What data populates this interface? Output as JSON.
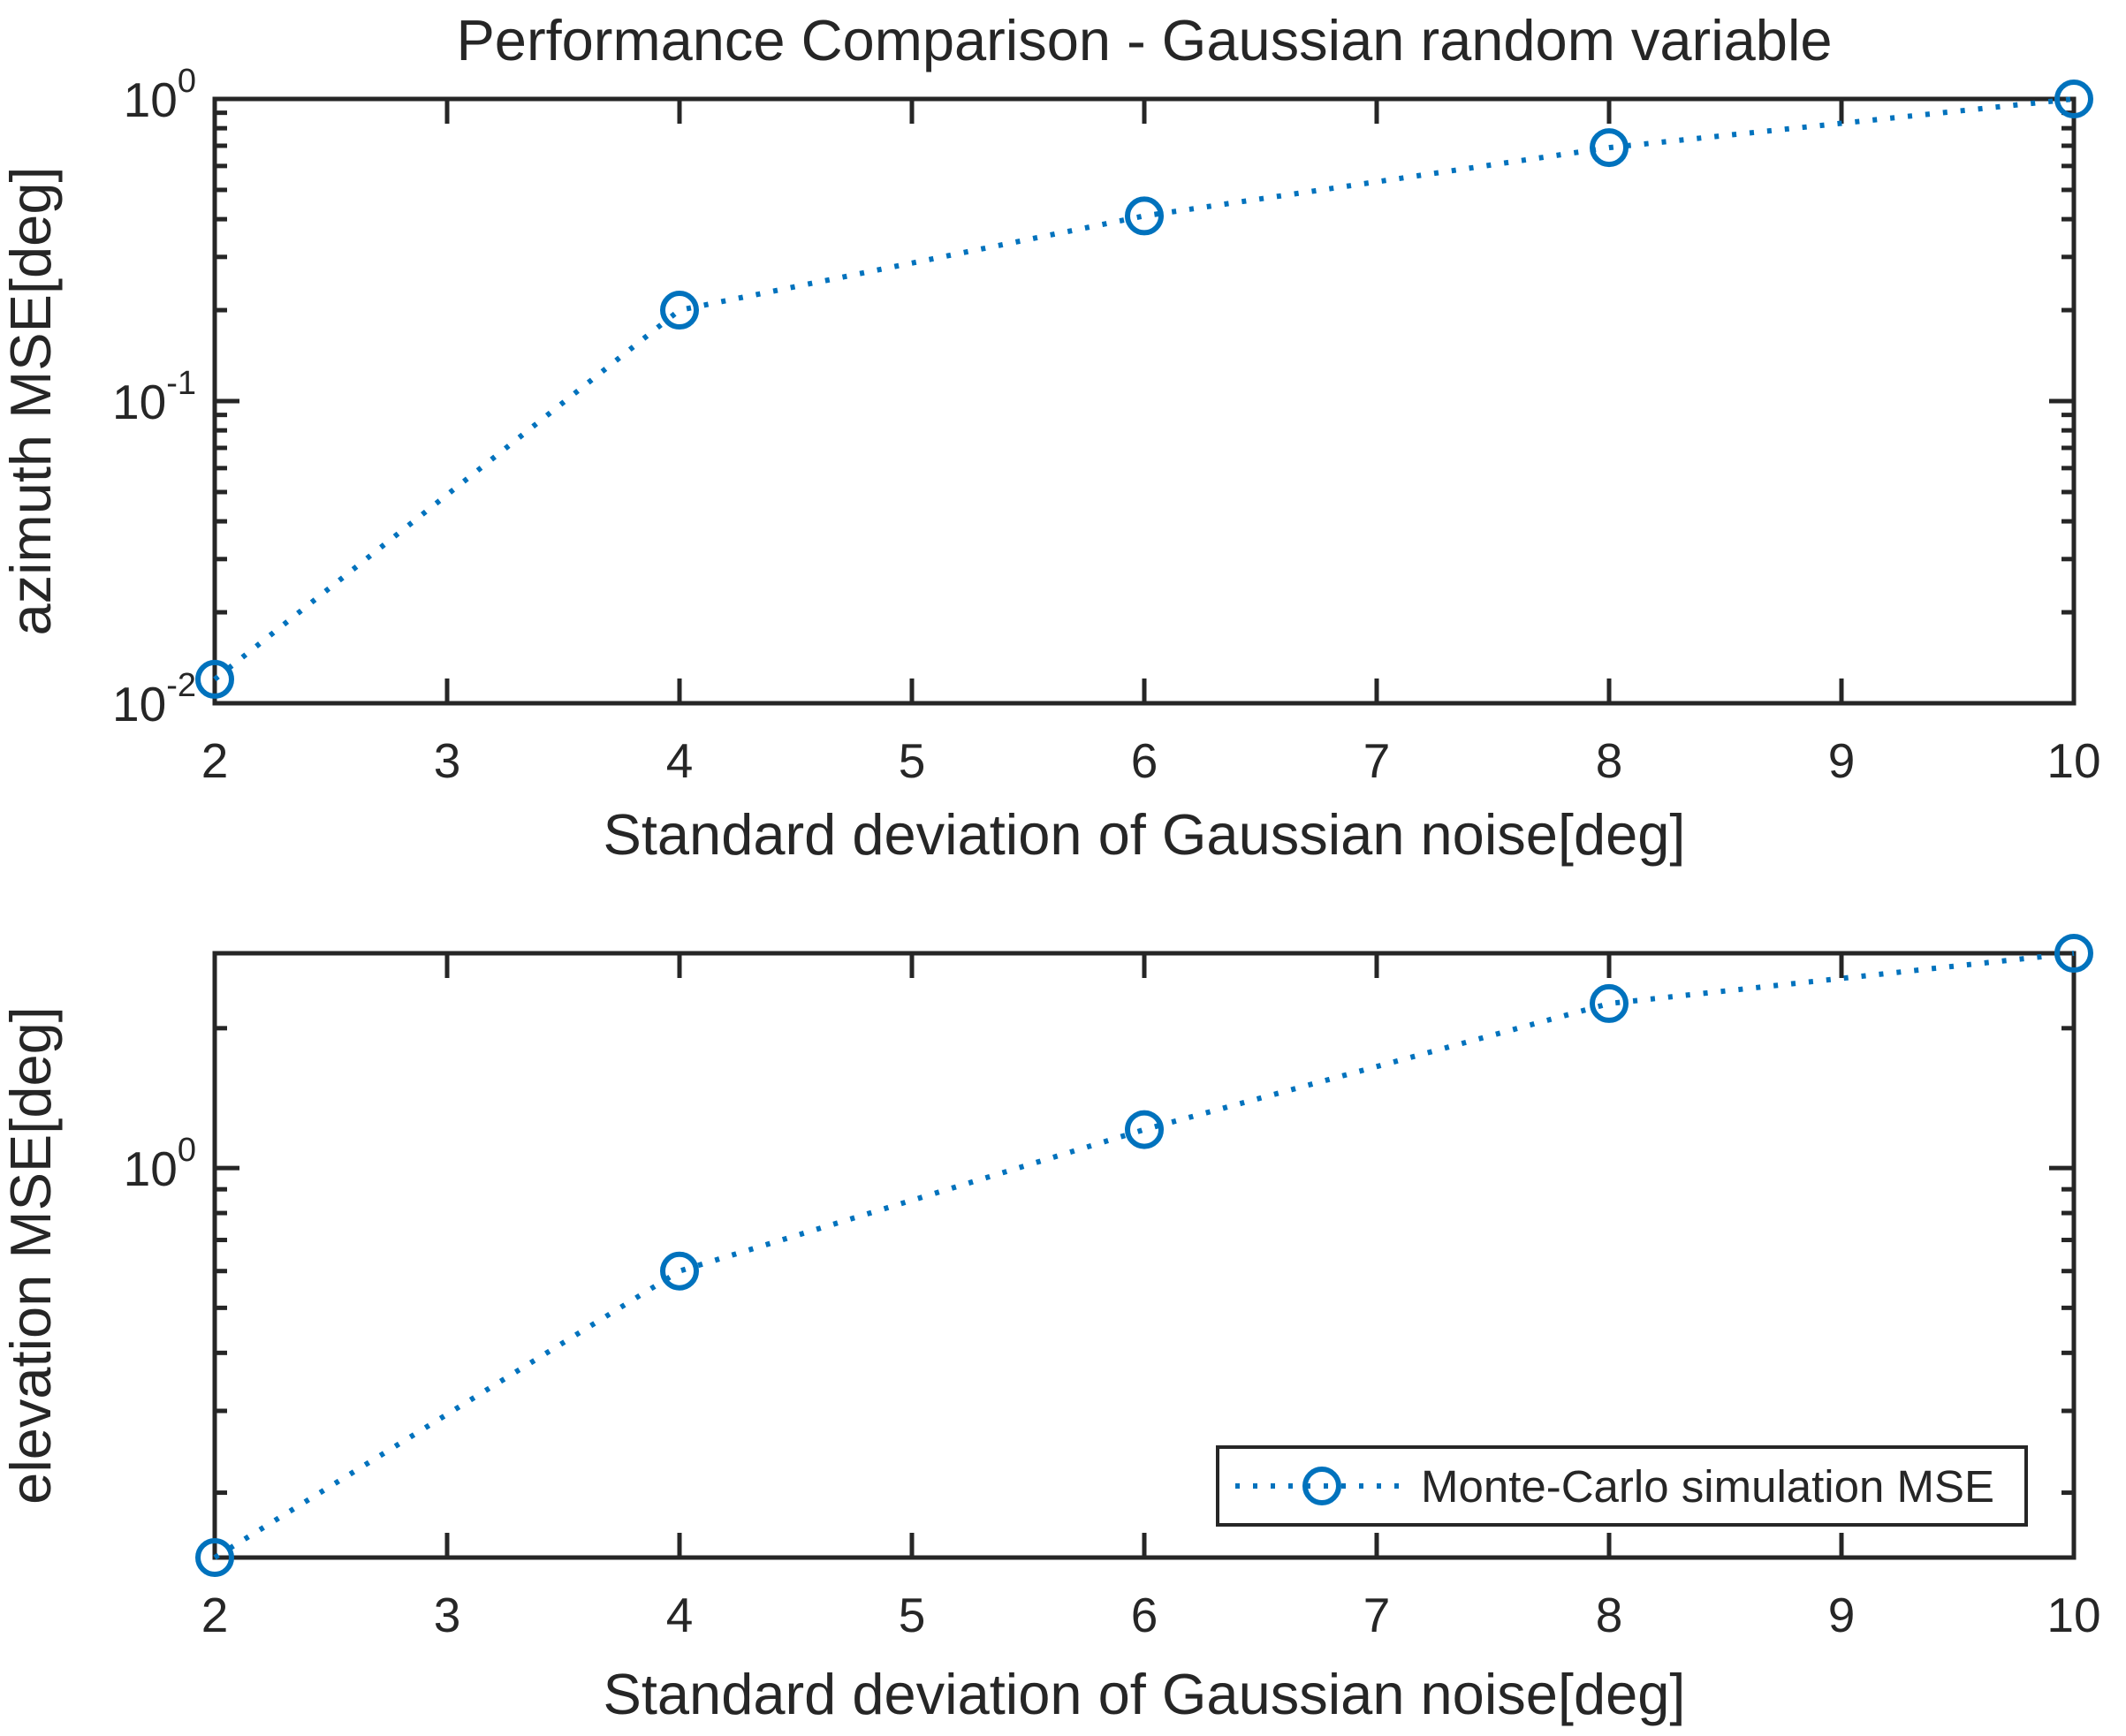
{
  "figure": {
    "background": "#ffffff",
    "series_color": "#0072BD",
    "axis_color": "#262626",
    "text_color": "#262626"
  },
  "chart_data": [
    {
      "type": "line",
      "subplot": "top",
      "title": "Performance Comparison - Gaussian random variable",
      "xlabel": "Standard deviation of Gaussian noise[deg]",
      "ylabel": "azimuth MSE[deg]",
      "series": [
        {
          "name": "Monte-Carlo simulation MSE",
          "x": [
            2,
            4,
            6,
            8,
            10
          ],
          "y": [
            0.012,
            0.2,
            0.41,
            0.69,
            1.0
          ]
        }
      ],
      "xlim": [
        2,
        10
      ],
      "ylim": [
        0.01,
        1.0
      ],
      "xscale": "linear",
      "yscale": "log",
      "xticks": [
        "2",
        "3",
        "4",
        "5",
        "6",
        "7",
        "8",
        "9",
        "10"
      ],
      "xtick_values": [
        2,
        3,
        4,
        5,
        6,
        7,
        8,
        9,
        10
      ],
      "ytick_values": [
        1,
        0.1,
        0.01
      ],
      "ytick_labels": [
        {
          "base": "10",
          "exp": "0"
        },
        {
          "base": "10",
          "exp": "-1"
        },
        {
          "base": "10",
          "exp": "-2"
        }
      ],
      "line_style": "dotted",
      "marker": "circle",
      "color": "#0072BD",
      "grid": false,
      "legend": null
    },
    {
      "type": "line",
      "subplot": "bottom",
      "title": "",
      "xlabel": "Standard deviation of Gaussian noise[deg]",
      "ylabel": "elevation MSE[deg]",
      "series": [
        {
          "name": "Monte-Carlo simulation MSE",
          "x": [
            2,
            4,
            6,
            8,
            10
          ],
          "y": [
            0.145,
            0.6,
            1.21,
            2.26,
            2.9
          ]
        }
      ],
      "xlim": [
        2,
        10
      ],
      "ylim": [
        0.145,
        2.9
      ],
      "xscale": "linear",
      "yscale": "log",
      "xticks": [
        "2",
        "3",
        "4",
        "5",
        "6",
        "7",
        "8",
        "9",
        "10"
      ],
      "xtick_values": [
        2,
        3,
        4,
        5,
        6,
        7,
        8,
        9,
        10
      ],
      "ytick_values": [
        1
      ],
      "ytick_labels": [
        {
          "base": "10",
          "exp": "0"
        }
      ],
      "line_style": "dotted",
      "marker": "circle",
      "color": "#0072BD",
      "grid": false,
      "legend": {
        "label": "Monte-Carlo simulation MSE",
        "position": "south-east"
      }
    }
  ]
}
